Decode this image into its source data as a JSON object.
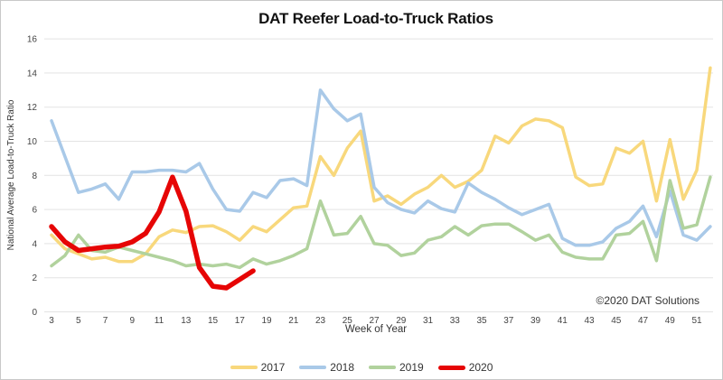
{
  "title": "DAT Reefer Load-to-Truck Ratios",
  "footer": "©2020 DAT Solutions",
  "chart_data": {
    "type": "line",
    "title": "DAT Reefer Load-to-Truck Ratios",
    "xlabel": "Week of Year",
    "ylabel": "National Average Load-to-Truck Ratio",
    "x_ticks": [
      3,
      5,
      7,
      9,
      11,
      13,
      15,
      17,
      19,
      21,
      23,
      25,
      27,
      29,
      31,
      33,
      35,
      37,
      39,
      41,
      43,
      45,
      47,
      49,
      51
    ],
    "y_ticks": [
      0,
      2,
      4,
      6,
      8,
      10,
      12,
      14,
      16
    ],
    "ylim": [
      0,
      16
    ],
    "xlim": [
      3,
      52.5
    ],
    "grid": true,
    "legend_position": "bottom",
    "axis_color": "#e3e3e3",
    "tick_text_color": "#444444",
    "weeks": [
      3,
      4,
      5,
      6,
      7,
      8,
      9,
      10,
      11,
      12,
      13,
      14,
      15,
      16,
      17,
      18,
      19,
      20,
      21,
      22,
      23,
      24,
      25,
      26,
      27,
      28,
      29,
      30,
      31,
      32,
      33,
      34,
      35,
      36,
      37,
      38,
      39,
      40,
      41,
      42,
      43,
      44,
      45,
      46,
      47,
      48,
      49,
      50,
      51,
      52
    ],
    "series": [
      {
        "name": "2017",
        "color": "#F8D87C",
        "stroke_width": 3.5,
        "values": [
          4.5,
          3.7,
          3.4,
          3.1,
          3.2,
          2.95,
          2.95,
          3.4,
          4.4,
          4.8,
          4.65,
          5.0,
          5.05,
          4.7,
          4.2,
          5.0,
          4.7,
          5.4,
          6.1,
          6.2,
          9.1,
          8.0,
          9.6,
          10.6,
          6.5,
          6.8,
          6.3,
          6.9,
          7.3,
          8.0,
          7.3,
          7.65,
          8.3,
          10.3,
          9.9,
          10.9,
          11.3,
          11.2,
          10.8,
          7.9,
          7.4,
          7.5,
          9.6,
          9.3,
          10.0,
          6.5,
          10.1,
          6.6,
          8.3,
          14.3
        ]
      },
      {
        "name": "2018",
        "color": "#A9C9E8",
        "stroke_width": 3.5,
        "values": [
          11.2,
          9.1,
          7.0,
          7.2,
          7.5,
          6.6,
          8.2,
          8.2,
          8.3,
          8.3,
          8.2,
          8.7,
          7.2,
          6.0,
          5.9,
          7.0,
          6.7,
          7.7,
          7.8,
          7.4,
          13.0,
          11.9,
          11.2,
          11.6,
          7.3,
          6.4,
          6.0,
          5.8,
          6.5,
          6.05,
          5.85,
          7.55,
          7.0,
          6.6,
          6.1,
          5.7,
          6.0,
          6.3,
          4.3,
          3.9,
          3.9,
          4.1,
          4.9,
          5.3,
          6.2,
          4.4,
          7.1,
          4.5,
          4.2,
          5.0
        ]
      },
      {
        "name": "2019",
        "color": "#B1D29D",
        "stroke_width": 3.5,
        "values": [
          2.7,
          3.3,
          4.5,
          3.6,
          3.5,
          3.8,
          3.6,
          3.4,
          3.2,
          3.0,
          2.7,
          2.8,
          2.7,
          2.8,
          2.6,
          3.1,
          2.8,
          3.0,
          3.3,
          3.7,
          6.5,
          4.5,
          4.6,
          5.6,
          4.0,
          3.9,
          3.3,
          3.45,
          4.2,
          4.4,
          5.0,
          4.5,
          5.05,
          5.15,
          5.15,
          4.7,
          4.2,
          4.5,
          3.5,
          3.2,
          3.1,
          3.1,
          4.5,
          4.6,
          5.3,
          3.0,
          7.7,
          4.9,
          5.1,
          7.9
        ]
      },
      {
        "name": "2020",
        "color": "#E60505",
        "stroke_width": 5.5,
        "values": [
          5.0,
          4.1,
          3.6,
          3.7,
          3.8,
          3.85,
          4.1,
          4.6,
          5.85,
          7.9,
          5.9,
          2.6,
          1.5,
          1.4,
          1.9,
          2.4
        ]
      }
    ]
  }
}
